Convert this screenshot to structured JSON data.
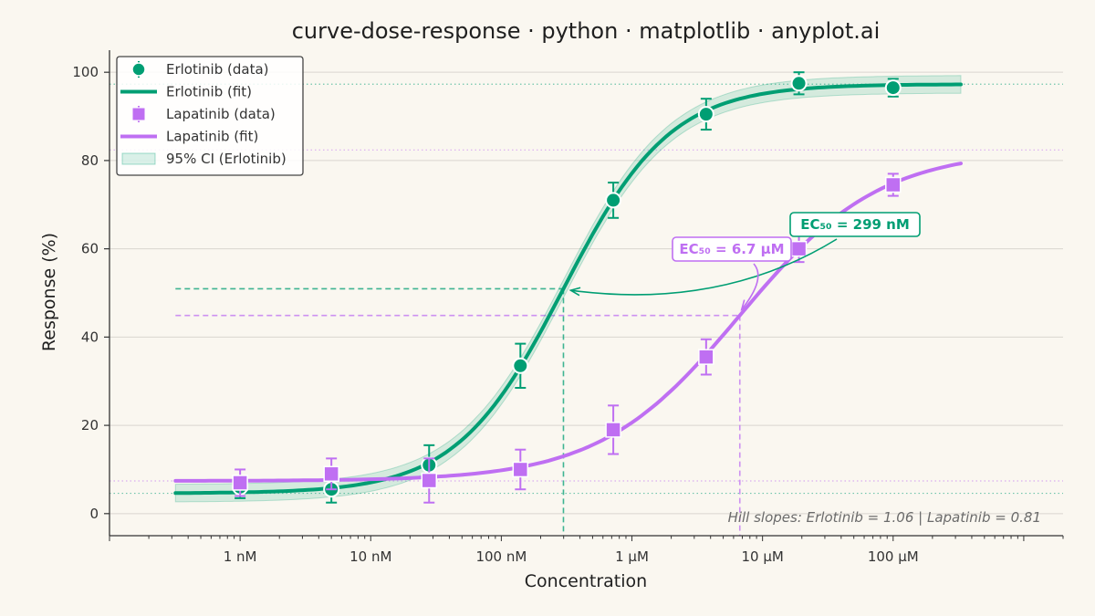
{
  "chart_data": {
    "type": "scatter",
    "title": "curve-dose-response · python · matplotlib · anyplot.ai",
    "xlabel": "Concentration",
    "ylabel": "Response (%)",
    "xscale": "log",
    "xlim_nM": [
      0.1,
      2000000
    ],
    "ylim": [
      -5,
      105
    ],
    "x_ticks": [
      {
        "value_nM": 1,
        "label": "1 nM"
      },
      {
        "value_nM": 10,
        "label": "10 nM"
      },
      {
        "value_nM": 100,
        "label": "100 nM"
      },
      {
        "value_nM": 1000,
        "label": "1 µM"
      },
      {
        "value_nM": 10000,
        "label": "10 µM"
      },
      {
        "value_nM": 100000,
        "label": "100 µM"
      }
    ],
    "y_ticks": [
      0,
      20,
      40,
      60,
      80,
      100
    ],
    "grid": "horizontal",
    "legend_position": "top-left",
    "series": [
      {
        "name": "Erlotinib (data)",
        "kind": "points",
        "marker": "circle",
        "color": "#009E73",
        "x_nM": [
          1,
          5,
          28,
          140,
          720,
          3700,
          19000,
          100000
        ],
        "y": [
          6,
          5.5,
          11,
          33.5,
          71,
          90.5,
          97.5,
          96.5
        ],
        "err": [
          2.5,
          3,
          4.5,
          5,
          4,
          3.5,
          2.5,
          2
        ]
      },
      {
        "name": "Erlotinib (fit)",
        "kind": "curve",
        "color": "#009E73",
        "bottom": 4.6,
        "top": 97.3,
        "ec50_nM": 299,
        "hill": 1.06,
        "x_range_nM": [
          0.32,
          330000
        ]
      },
      {
        "name": "Lapatinib (data)",
        "kind": "points",
        "marker": "square",
        "color": "#BF6FF2",
        "x_nM": [
          1,
          5,
          28,
          140,
          720,
          3700,
          19000,
          100000
        ],
        "y": [
          7,
          9,
          7.5,
          10,
          19,
          35.5,
          60,
          74.5
        ],
        "err": [
          3,
          3.5,
          5,
          4.5,
          5.5,
          4,
          3,
          2.5
        ]
      },
      {
        "name": "Lapatinib (fit)",
        "kind": "curve",
        "color": "#BF6FF2",
        "bottom": 7.4,
        "top": 82.4,
        "ec50_nM": 6700,
        "hill": 0.81,
        "x_range_nM": [
          0.32,
          330000
        ]
      }
    ],
    "confidence_band": {
      "name": "95% CI (Erlotinib)",
      "color": "#009E73",
      "halfwidth": 2
    },
    "annotations": [
      {
        "text": "EC₅₀ = 299 nM",
        "color": "#009E73",
        "x_nM": 299,
        "y": 51
      },
      {
        "text": "EC₅₀ = 6.7 µM",
        "color": "#BF6FF2",
        "x_nM": 6700,
        "y": 45
      }
    ],
    "hill_note": "Hill slopes:  Erlotinib = 1.06  |  Lapatinib = 0.81"
  }
}
